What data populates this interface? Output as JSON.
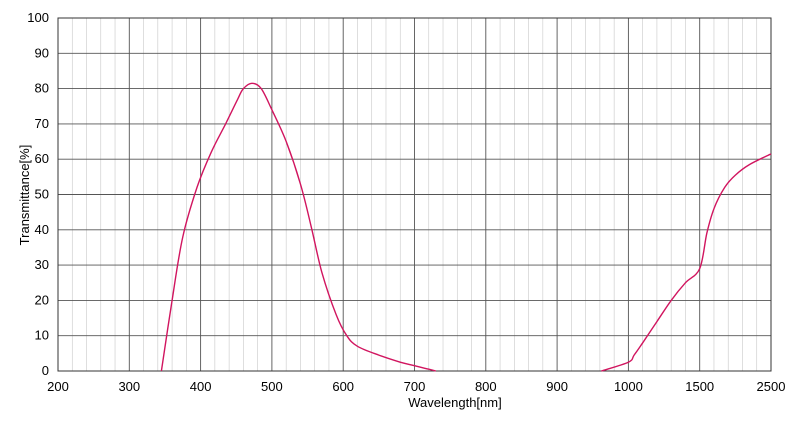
{
  "chart_data": {
    "type": "line",
    "xlabel": "Wavelength[nm]",
    "ylabel": "Transmittance[%]",
    "x_tick_labels": [
      "200",
      "300",
      "400",
      "500",
      "600",
      "700",
      "800",
      "900",
      "1000",
      "1500",
      "2500"
    ],
    "y_tick_labels": [
      "0",
      "10",
      "20",
      "30",
      "40",
      "50",
      "60",
      "70",
      "80",
      "90",
      "100"
    ],
    "ylim": [
      0,
      100
    ],
    "x_scale": "piecewise (200–1000 nm linear at 100 nm per major division; 1000–1500 and 1500–2500 one division each)",
    "grid": true,
    "legend": "none",
    "series": [
      {
        "color": "#d1155f",
        "points": [
          [
            345,
            0
          ],
          [
            360,
            20
          ],
          [
            375,
            38
          ],
          [
            395,
            52
          ],
          [
            415,
            62
          ],
          [
            435,
            70
          ],
          [
            452,
            77
          ],
          [
            460,
            80
          ],
          [
            472,
            81.5
          ],
          [
            485,
            80
          ],
          [
            500,
            74
          ],
          [
            520,
            65
          ],
          [
            540,
            53
          ],
          [
            555,
            41
          ],
          [
            570,
            28
          ],
          [
            590,
            16
          ],
          [
            605,
            10
          ],
          [
            620,
            7
          ],
          [
            650,
            4.5
          ],
          [
            680,
            2.5
          ],
          [
            700,
            1.5
          ],
          [
            720,
            0.5
          ],
          [
            730,
            0
          ]
        ]
      },
      {
        "color": "#d1155f",
        "points": [
          [
            962,
            0
          ],
          [
            1000,
            2.5
          ],
          [
            1040,
            4.5
          ],
          [
            1100,
            8
          ],
          [
            1200,
            14
          ],
          [
            1300,
            20
          ],
          [
            1400,
            25
          ],
          [
            1500,
            29
          ],
          [
            1600,
            39
          ],
          [
            1700,
            46
          ],
          [
            1850,
            52
          ],
          [
            2000,
            55.5
          ],
          [
            2200,
            58.5
          ],
          [
            2500,
            61.5
          ]
        ]
      }
    ]
  }
}
